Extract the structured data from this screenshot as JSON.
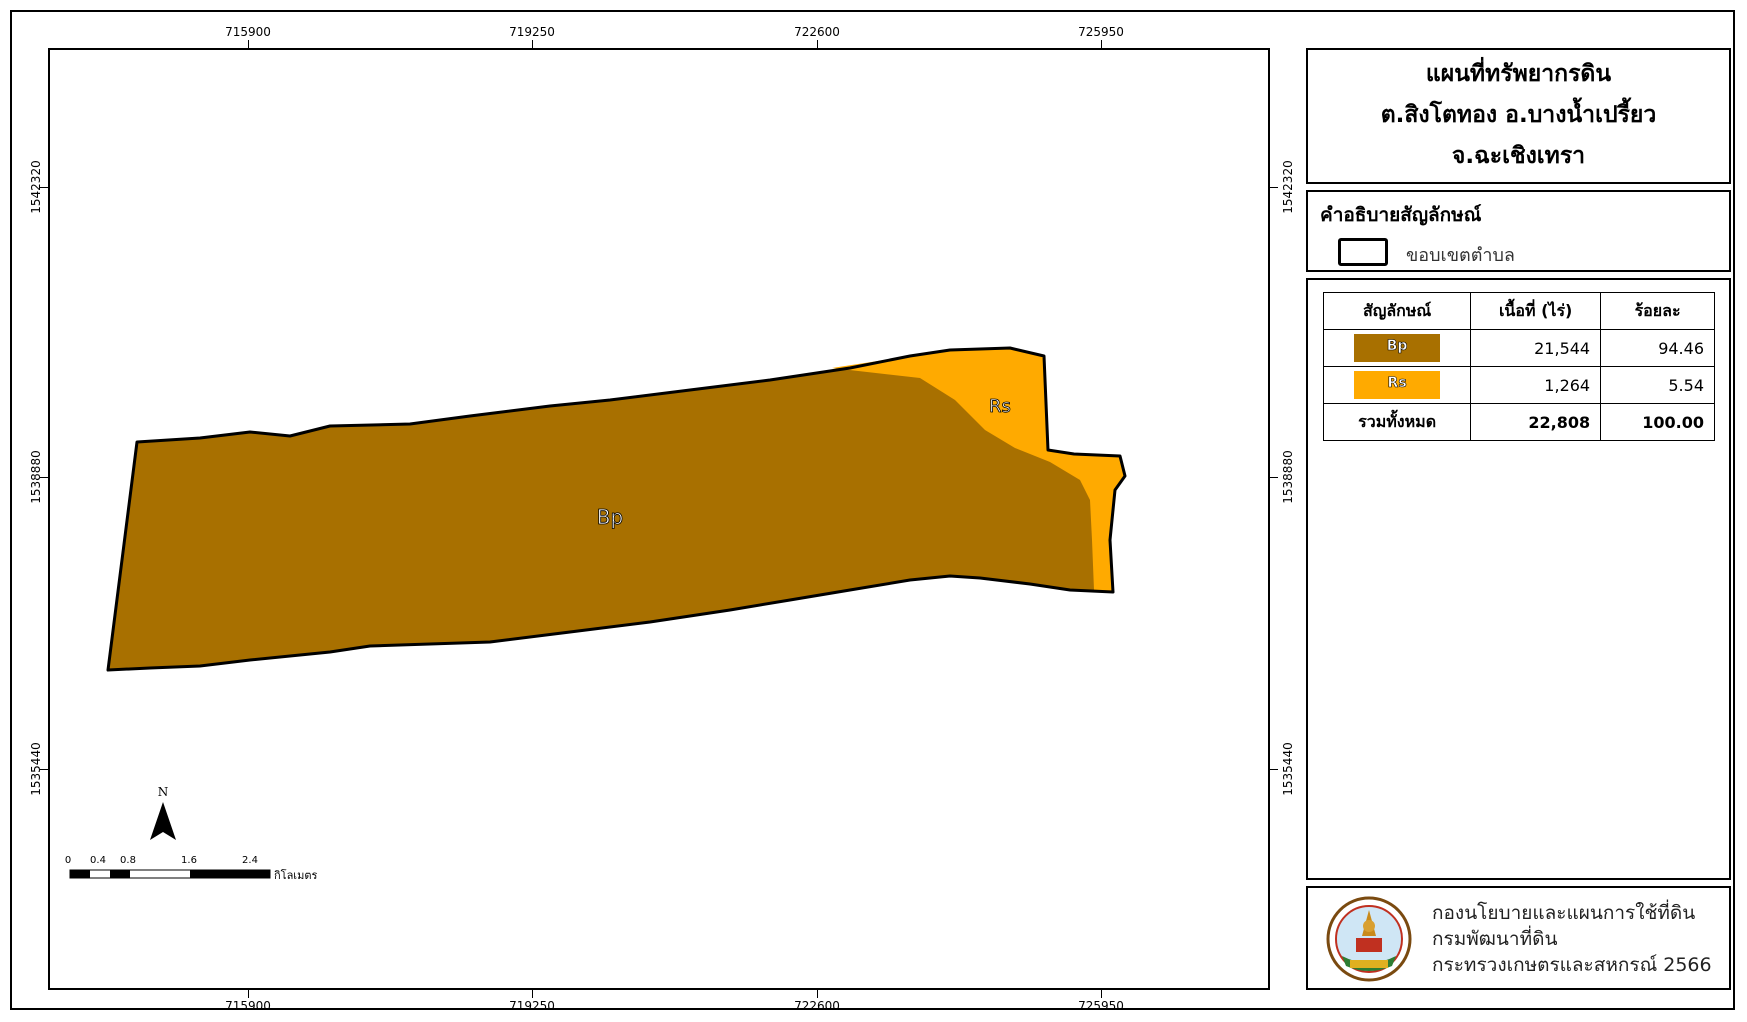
{
  "title": {
    "line1": "แผนที่ทรัพยากรดิน",
    "line2": "ต.สิงโตทอง อ.บางน้ำเปรี้ยว",
    "line3": "จ.ฉะเชิงเทรา"
  },
  "legend": {
    "heading": "คำอธิบายสัญลักษณ์",
    "boundary_label": "ขอบเขตตำบล"
  },
  "stats_table": {
    "headers": [
      "สัญลักษณ์",
      "เนื้อที่ (ไร่)",
      "ร้อยละ"
    ],
    "rows": [
      {
        "symbol": "Bp",
        "color": "#A87000",
        "area": "21,544",
        "percent": "94.46"
      },
      {
        "symbol": "Rs",
        "color": "#FFAA00",
        "area": "1,264",
        "percent": "5.54"
      }
    ],
    "total": {
      "label": "รวมทั้งหมด",
      "area": "22,808",
      "percent": "100.00"
    }
  },
  "credit": {
    "line1": "กองนโยบายและแผนการใช้ที่ดิน",
    "line2": "กรมพัฒนาที่ดิน",
    "line3": "กระทรวงเกษตรและสหกรณ์ 2566"
  },
  "grid": {
    "x_labels": [
      "715900",
      "719250",
      "722600",
      "725950"
    ],
    "y_labels": [
      "1542320",
      "1538880",
      "1535440"
    ]
  },
  "map_labels": {
    "bp": "Bp",
    "rs": "Rs"
  },
  "north_arrow": "N",
  "scale_bar": {
    "ticks": [
      "0",
      "0.4",
      "0.8",
      "1.6",
      "2.4"
    ],
    "unit": "กิโลเมตร"
  },
  "colors": {
    "bp": "#A87000",
    "rs": "#FFAA00"
  }
}
